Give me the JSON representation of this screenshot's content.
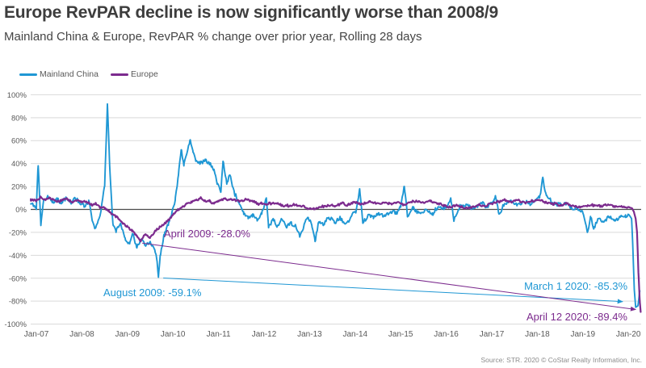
{
  "header": {
    "title": "Europe RevPAR decline is now significantly worse than 2008/9",
    "subtitle": "Mainland China & Europe, RevPAR % change over prior year, Rolling 28 days"
  },
  "footer": {
    "source": "Source: STR. 2020 © CoStar Realty Information, Inc."
  },
  "chart_data": {
    "type": "line",
    "title": "Europe RevPAR decline is now significantly worse than 2008/9",
    "subtitle": "Mainland China & Europe, RevPAR % change over prior year, Rolling 28 days",
    "ylabel": "RevPAR % change over prior year",
    "xlabel": "",
    "ylim": [
      -100,
      100
    ],
    "grid": true,
    "legend_position": "top-left",
    "colors": {
      "gridline": "#d9d9d9",
      "zero_line": "#4a4a4a",
      "tick_text": "#595959"
    },
    "y_axis": {
      "ticks": [
        {
          "value": 100,
          "label": "100%"
        },
        {
          "value": 80,
          "label": "80%"
        },
        {
          "value": 60,
          "label": "60%"
        },
        {
          "value": 40,
          "label": "40%"
        },
        {
          "value": 20,
          "label": "20%"
        },
        {
          "value": 0,
          "label": "0%"
        },
        {
          "value": -20,
          "label": "-20%"
        },
        {
          "value": -40,
          "label": "-40%"
        },
        {
          "value": -60,
          "label": "-60%"
        },
        {
          "value": -80,
          "label": "-80%"
        },
        {
          "value": -100,
          "label": "-100%"
        }
      ]
    },
    "x_axis": {
      "ticks": [
        {
          "year": 2007,
          "label": "Jan-07"
        },
        {
          "year": 2008,
          "label": "Jan-08"
        },
        {
          "year": 2009,
          "label": "Jan-09"
        },
        {
          "year": 2010,
          "label": "Jan-10"
        },
        {
          "year": 2011,
          "label": "Jan-11"
        },
        {
          "year": 2012,
          "label": "Jan-12"
        },
        {
          "year": 2013,
          "label": "Jan-13"
        },
        {
          "year": 2014,
          "label": "Jan-14"
        },
        {
          "year": 2015,
          "label": "Jan-15"
        },
        {
          "year": 2016,
          "label": "Jan-16"
        },
        {
          "year": 2017,
          "label": "Jan-17"
        },
        {
          "year": 2018,
          "label": "Jan-18"
        },
        {
          "year": 2019,
          "label": "Jan-19"
        },
        {
          "year": 2020,
          "label": "Jan-20"
        }
      ]
    },
    "series": [
      {
        "id": "mainland-china",
        "name": "Mainland China",
        "color": "#1f97d4",
        "points": [
          [
            2006.88,
            5
          ],
          [
            2007.0,
            0
          ],
          [
            2007.04,
            38
          ],
          [
            2007.1,
            -14
          ],
          [
            2007.16,
            8
          ],
          [
            2007.25,
            12
          ],
          [
            2007.35,
            6
          ],
          [
            2007.45,
            10
          ],
          [
            2007.55,
            5
          ],
          [
            2007.65,
            9
          ],
          [
            2007.75,
            6
          ],
          [
            2007.85,
            10
          ],
          [
            2007.95,
            7
          ],
          [
            2008.05,
            2
          ],
          [
            2008.15,
            8
          ],
          [
            2008.22,
            -8
          ],
          [
            2008.3,
            -16
          ],
          [
            2008.4,
            -5
          ],
          [
            2008.5,
            20
          ],
          [
            2008.56,
            92
          ],
          [
            2008.62,
            30
          ],
          [
            2008.68,
            -12
          ],
          [
            2008.75,
            -20
          ],
          [
            2008.85,
            -12
          ],
          [
            2008.95,
            -25
          ],
          [
            2009.05,
            -30
          ],
          [
            2009.12,
            -22
          ],
          [
            2009.2,
            -33
          ],
          [
            2009.3,
            -26
          ],
          [
            2009.4,
            -32
          ],
          [
            2009.5,
            -28
          ],
          [
            2009.6,
            -35
          ],
          [
            2009.65,
            -45
          ],
          [
            2009.68,
            -59.1
          ],
          [
            2009.72,
            -40
          ],
          [
            2009.8,
            -22
          ],
          [
            2009.9,
            -12
          ],
          [
            2009.97,
            -5
          ],
          [
            2010.05,
            8
          ],
          [
            2010.12,
            30
          ],
          [
            2010.18,
            52
          ],
          [
            2010.24,
            38
          ],
          [
            2010.3,
            48
          ],
          [
            2010.37,
            60
          ],
          [
            2010.44,
            50
          ],
          [
            2010.5,
            42
          ],
          [
            2010.6,
            40
          ],
          [
            2010.7,
            42
          ],
          [
            2010.8,
            40
          ],
          [
            2010.9,
            35
          ],
          [
            2010.97,
            22
          ],
          [
            2011.05,
            15
          ],
          [
            2011.1,
            42
          ],
          [
            2011.18,
            22
          ],
          [
            2011.25,
            30
          ],
          [
            2011.35,
            14
          ],
          [
            2011.45,
            6
          ],
          [
            2011.55,
            -2
          ],
          [
            2011.65,
            -8
          ],
          [
            2011.75,
            -4
          ],
          [
            2011.85,
            -10
          ],
          [
            2011.95,
            -4
          ],
          [
            2012.05,
            10
          ],
          [
            2012.1,
            -16
          ],
          [
            2012.2,
            -8
          ],
          [
            2012.3,
            -14
          ],
          [
            2012.4,
            -9
          ],
          [
            2012.5,
            -16
          ],
          [
            2012.6,
            -11
          ],
          [
            2012.7,
            -15
          ],
          [
            2012.78,
            -23
          ],
          [
            2012.88,
            -13
          ],
          [
            2012.97,
            -7
          ],
          [
            2013.05,
            -14
          ],
          [
            2013.12,
            -28
          ],
          [
            2013.2,
            -11
          ],
          [
            2013.3,
            -14
          ],
          [
            2013.42,
            -7
          ],
          [
            2013.55,
            -12
          ],
          [
            2013.68,
            -8
          ],
          [
            2013.8,
            -12
          ],
          [
            2013.92,
            -6
          ],
          [
            2014.02,
            -2
          ],
          [
            2014.1,
            18
          ],
          [
            2014.17,
            -12
          ],
          [
            2014.28,
            -5
          ],
          [
            2014.4,
            -8
          ],
          [
            2014.52,
            -3
          ],
          [
            2014.65,
            -6
          ],
          [
            2014.78,
            -2
          ],
          [
            2014.9,
            -4
          ],
          [
            2015.0,
            2
          ],
          [
            2015.08,
            20
          ],
          [
            2015.15,
            -6
          ],
          [
            2015.27,
            1
          ],
          [
            2015.4,
            -3
          ],
          [
            2015.55,
            0
          ],
          [
            2015.7,
            -3
          ],
          [
            2015.85,
            2
          ],
          [
            2015.95,
            0
          ],
          [
            2016.05,
            5
          ],
          [
            2016.1,
            10
          ],
          [
            2016.17,
            -10
          ],
          [
            2016.3,
            2
          ],
          [
            2016.45,
            4
          ],
          [
            2016.6,
            1
          ],
          [
            2016.75,
            5
          ],
          [
            2016.9,
            3
          ],
          [
            2017.0,
            6
          ],
          [
            2017.08,
            12
          ],
          [
            2017.16,
            -4
          ],
          [
            2017.28,
            5
          ],
          [
            2017.42,
            8
          ],
          [
            2017.56,
            4
          ],
          [
            2017.7,
            7
          ],
          [
            2017.84,
            4
          ],
          [
            2017.95,
            7
          ],
          [
            2018.05,
            10
          ],
          [
            2018.12,
            28
          ],
          [
            2018.2,
            12
          ],
          [
            2018.3,
            7
          ],
          [
            2018.45,
            4
          ],
          [
            2018.6,
            6
          ],
          [
            2018.75,
            2
          ],
          [
            2018.9,
            0
          ],
          [
            2019.0,
            -3
          ],
          [
            2019.1,
            -20
          ],
          [
            2019.17,
            -7
          ],
          [
            2019.24,
            -17
          ],
          [
            2019.33,
            -8
          ],
          [
            2019.45,
            -11
          ],
          [
            2019.57,
            -7
          ],
          [
            2019.7,
            -9
          ],
          [
            2019.82,
            -6
          ],
          [
            2019.94,
            -7
          ],
          [
            2020.02,
            -5
          ],
          [
            2020.07,
            -8
          ],
          [
            2020.1,
            -35
          ],
          [
            2020.13,
            -70
          ],
          [
            2020.16,
            -85.3
          ],
          [
            2020.21,
            -84
          ],
          [
            2020.25,
            -71
          ]
        ]
      },
      {
        "id": "europe",
        "name": "Europe",
        "color": "#7c2b8e",
        "points": [
          [
            2006.88,
            9
          ],
          [
            2007.0,
            8
          ],
          [
            2007.1,
            11
          ],
          [
            2007.2,
            8
          ],
          [
            2007.3,
            10
          ],
          [
            2007.4,
            8
          ],
          [
            2007.5,
            7
          ],
          [
            2007.6,
            9
          ],
          [
            2007.7,
            8
          ],
          [
            2007.8,
            6
          ],
          [
            2007.9,
            8
          ],
          [
            2008.0,
            6
          ],
          [
            2008.1,
            7
          ],
          [
            2008.2,
            4
          ],
          [
            2008.3,
            5
          ],
          [
            2008.4,
            2
          ],
          [
            2008.5,
            1
          ],
          [
            2008.6,
            -2
          ],
          [
            2008.7,
            -5
          ],
          [
            2008.8,
            -8
          ],
          [
            2008.9,
            -12
          ],
          [
            2009.0,
            -15
          ],
          [
            2009.1,
            -19
          ],
          [
            2009.2,
            -23
          ],
          [
            2009.29,
            -28
          ],
          [
            2009.38,
            -22
          ],
          [
            2009.5,
            -24
          ],
          [
            2009.6,
            -19
          ],
          [
            2009.7,
            -16
          ],
          [
            2009.8,
            -13
          ],
          [
            2009.9,
            -9
          ],
          [
            2010.0,
            -5
          ],
          [
            2010.1,
            -1
          ],
          [
            2010.2,
            2
          ],
          [
            2010.3,
            5
          ],
          [
            2010.4,
            7
          ],
          [
            2010.5,
            8
          ],
          [
            2010.6,
            10
          ],
          [
            2010.7,
            8
          ],
          [
            2010.8,
            7
          ],
          [
            2010.9,
            5
          ],
          [
            2011.0,
            7
          ],
          [
            2011.15,
            9
          ],
          [
            2011.3,
            8
          ],
          [
            2011.45,
            7
          ],
          [
            2011.6,
            9
          ],
          [
            2011.75,
            7
          ],
          [
            2011.9,
            5
          ],
          [
            2012.05,
            4
          ],
          [
            2012.2,
            6
          ],
          [
            2012.35,
            4
          ],
          [
            2012.5,
            3
          ],
          [
            2012.65,
            5
          ],
          [
            2012.8,
            3
          ],
          [
            2012.95,
            1
          ],
          [
            2013.1,
            0
          ],
          [
            2013.25,
            2
          ],
          [
            2013.4,
            4
          ],
          [
            2013.55,
            3
          ],
          [
            2013.7,
            5
          ],
          [
            2013.85,
            4
          ],
          [
            2014.0,
            6
          ],
          [
            2014.15,
            5
          ],
          [
            2014.3,
            7
          ],
          [
            2014.45,
            5
          ],
          [
            2014.6,
            6
          ],
          [
            2014.75,
            5
          ],
          [
            2014.9,
            6
          ],
          [
            2015.05,
            4
          ],
          [
            2015.2,
            6
          ],
          [
            2015.35,
            7
          ],
          [
            2015.5,
            6
          ],
          [
            2015.65,
            7
          ],
          [
            2015.8,
            5
          ],
          [
            2015.95,
            4
          ],
          [
            2016.1,
            2
          ],
          [
            2016.25,
            3
          ],
          [
            2016.4,
            1
          ],
          [
            2016.55,
            2
          ],
          [
            2016.7,
            4
          ],
          [
            2016.85,
            3
          ],
          [
            2017.0,
            5
          ],
          [
            2017.15,
            7
          ],
          [
            2017.3,
            8
          ],
          [
            2017.45,
            7
          ],
          [
            2017.6,
            8
          ],
          [
            2017.75,
            6
          ],
          [
            2017.9,
            7
          ],
          [
            2018.05,
            8
          ],
          [
            2018.2,
            6
          ],
          [
            2018.35,
            5
          ],
          [
            2018.5,
            4
          ],
          [
            2018.65,
            5
          ],
          [
            2018.8,
            3
          ],
          [
            2018.95,
            2
          ],
          [
            2019.1,
            3
          ],
          [
            2019.25,
            4
          ],
          [
            2019.4,
            3
          ],
          [
            2019.55,
            4
          ],
          [
            2019.7,
            2
          ],
          [
            2019.85,
            3
          ],
          [
            2020.0,
            2
          ],
          [
            2020.08,
            1
          ],
          [
            2020.12,
            -2
          ],
          [
            2020.16,
            -8
          ],
          [
            2020.19,
            -20
          ],
          [
            2020.22,
            -55
          ],
          [
            2020.25,
            -80
          ],
          [
            2020.27,
            -89.4
          ]
        ]
      }
    ],
    "annotations": [
      {
        "text": "April 2009: -28.0%",
        "series": "Europe",
        "color": "#7c2b8e",
        "x": 2009.29,
        "y": -28.0
      },
      {
        "text": "August 2009: -59.1%",
        "series": "Mainland China",
        "color": "#1f97d4",
        "x": 2009.68,
        "y": -59.1
      },
      {
        "text": "March 1 2020: -85.3%",
        "series": "Mainland China",
        "color": "#1f97d4",
        "x": 2020.16,
        "y": -85.3
      },
      {
        "text": "April 12 2020: -89.4%",
        "series": "Europe",
        "color": "#7c2b8e",
        "x": 2020.27,
        "y": -89.4
      }
    ],
    "leader_lines": [
      {
        "series_index": 0,
        "from": [
          2009.68,
          -59.1
        ],
        "to": [
          2020.16,
          -85.3
        ]
      },
      {
        "series_index": 1,
        "from": [
          2009.29,
          -28.0
        ],
        "to": [
          2020.27,
          -89.4
        ]
      }
    ]
  }
}
